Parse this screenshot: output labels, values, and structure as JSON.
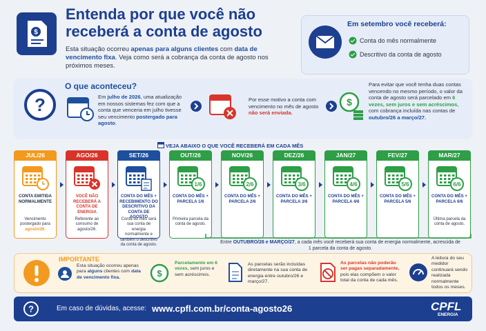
{
  "header": {
    "title": "Entenda por que você não receberá a conta de agosto",
    "intro": [
      {
        "text": "Esta situação ocorreu "
      },
      {
        "text": "apenas para alguns clientes",
        "em": "#1d4f9c"
      },
      {
        "text": " com "
      },
      {
        "text": "data de vencimento fixa",
        "em": "#1d4f9c"
      },
      {
        "text": ". Veja como será a cobrança da conta de agosto nos próximos meses."
      }
    ]
  },
  "september": {
    "title": "Em setembro você receberá:",
    "items": [
      "Conta do mês normalmente",
      "Descritivo da conta de agosto"
    ]
  },
  "what_happened": {
    "title": "O que aconteceu?",
    "steps": [
      [
        {
          "text": "Em "
        },
        {
          "text": "julho de 2026",
          "em": "#1d4f9c"
        },
        {
          "text": ", uma atualização em nossos sistemas fez com que a conta que venceria em julho tivesse seu vencimento "
        },
        {
          "text": "postergado para agosto",
          "em": "#1d4f9c"
        },
        {
          "text": "."
        }
      ],
      [
        {
          "text": "Por esse motivo a conta com vencimento no mês de agosto "
        },
        {
          "text": "não será enviada.",
          "em": "#d9342b"
        }
      ],
      [
        {
          "text": "Para evitar que você tenha duas contas vencendo no mesmo período, o valor da conta de agosto será parcelado em "
        },
        {
          "text": "6 vezes, sem juros e sem acréscimos",
          "em": "#2e9e47"
        },
        {
          "text": ", com cobrança incluída nas contas de "
        },
        {
          "text": "outubro/26 a março/27.",
          "em": "#1d4f9c"
        }
      ]
    ]
  },
  "timeline": {
    "title": "VEJA ABAIXO O QUE VOCÊ RECEBERÁ EM CADA MÊS",
    "months": [
      {
        "month": "JUL/26",
        "color": "#f29a1f",
        "label": "CONTA EMITIDA NORMALMENTE",
        "label_color": "#1b2a4a",
        "note": [
          {
            "text": "Vencimento postergado para "
          },
          {
            "text": "agosto/26.",
            "em": "#f29a1f"
          }
        ]
      },
      {
        "month": "AGO/26",
        "color": "#d9342b",
        "label": "VOCÊ NÃO RECEBERÁ A CONTA DE ENERGIA",
        "label_color": "#d9342b",
        "note": [
          {
            "text": "Referente ao consumo de agosto/26."
          }
        ]
      },
      {
        "month": "SET/26",
        "color": "#1d4f9c",
        "label": "CONTA DO MÊS + RECEBIMENTO DO DESCRITIVO DA CONTA DE AGOSTO",
        "label_color": "#1d3f8f",
        "note": [
          {
            "text": "Conta do mês será sua conta de energia normalmente e também o descritivo da conta de agosto."
          }
        ]
      },
      {
        "month": "OUT/26",
        "color": "#2e9e47",
        "badge": "1/6",
        "label": "CONTA DO MÊS + PARCELA 1/6",
        "label_color": "#1d3f8f",
        "note": [
          {
            "text": "Primeira parcela da conta de agosto."
          }
        ]
      },
      {
        "month": "NOV/26",
        "color": "#2e9e47",
        "badge": "2/6",
        "label": "CONTA DO MÊS + PARCELA 2/6",
        "label_color": "#1d3f8f"
      },
      {
        "month": "DEZ/26",
        "color": "#2e9e47",
        "badge": "3/6",
        "label": "CONTA DO MÊS + PARCELA 3/6",
        "label_color": "#1d3f8f"
      },
      {
        "month": "JAN/27",
        "color": "#2e9e47",
        "badge": "4/6",
        "label": "CONTA DO MÊS + PARCELA 4/6",
        "label_color": "#1d3f8f"
      },
      {
        "month": "FEV/27",
        "color": "#2e9e47",
        "badge": "5/6",
        "label": "CONTA DO MÊS + PARCELA 5/6",
        "label_color": "#1d3f8f"
      },
      {
        "month": "MAR/27",
        "color": "#2e9e47",
        "badge": "6/6",
        "label": "CONTA DO MÊS + PARCELA 6/6",
        "label_color": "#1d3f8f",
        "note": [
          {
            "text": "Última parcela da conta de agosto."
          }
        ]
      }
    ],
    "summary": [
      {
        "text": "Entre "
      },
      {
        "text": "OUTUBRO/26 e MARÇO/27",
        "em": "#1d3f8f"
      },
      {
        "text": ", a cada mês você receberá sua conta de energia normalmente, acrescida de 1 parcela da conta de agosto."
      }
    ]
  },
  "important": {
    "title": "IMPORTANTE",
    "items": [
      [
        {
          "text": "Esta situação ocorreu apenas para "
        },
        {
          "text": "alguns",
          "em": "#1d4f9c"
        },
        {
          "text": " clientes com "
        },
        {
          "text": "data de vencimento fixa.",
          "em": "#1d4f9c"
        }
      ],
      [
        {
          "text": "Parcelamento em 6 vezes,",
          "em": "#2e9e47"
        },
        {
          "text": " sem juros e sem acréscimos."
        }
      ],
      [
        {
          "text": "As parcelas serão incluídas diretamente na sua conta de energia entre outubro/26 e março/27."
        }
      ],
      [
        {
          "text": "As parcelas não poderão ser pagas separadamente,",
          "em": "#d9342b"
        },
        {
          "text": " pois elas compõem o valor total da conta de cada mês."
        }
      ],
      [
        {
          "text": "A leitura do seu medidor continuará sendo realizada normalmente todos os meses."
        }
      ]
    ]
  },
  "footer": {
    "prompt": "Em caso de dúvidas, acesse:",
    "url": "www.cpfl.com.br/conta-agosto26",
    "brand": "CPFL",
    "brand_sub": "ENERGIA"
  }
}
